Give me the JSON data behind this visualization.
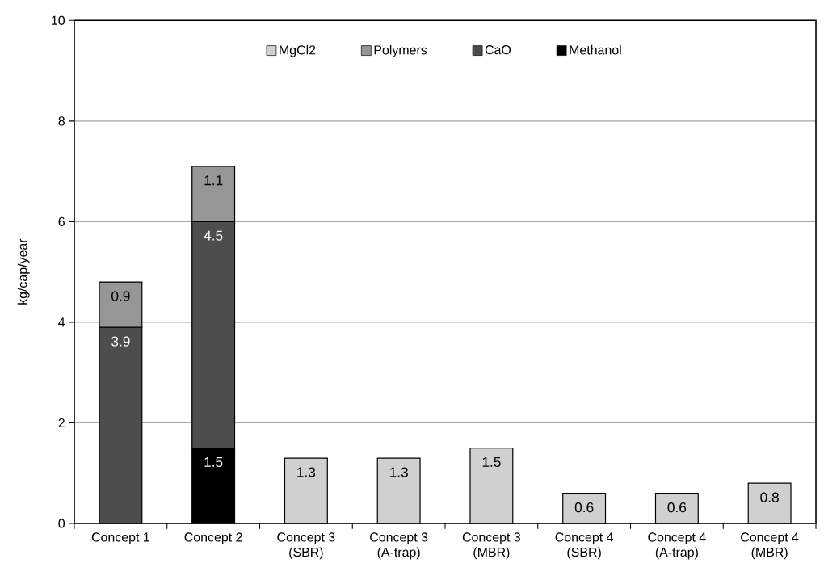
{
  "chart_data": {
    "type": "bar",
    "stacked": true,
    "ylabel": "kg/cap/year",
    "categories": [
      "Concept 1",
      "Concept 2",
      "Concept 3 (SBR)",
      "Concept 3 (A-trap)",
      "Concept 3 (MBR)",
      "Concept 4 (SBR)",
      "Concept 4 (A-trap)",
      "Concept 4 (MBR)"
    ],
    "series": [
      {
        "name": "Methanol",
        "color": "#000000",
        "values": [
          null,
          1.5,
          null,
          null,
          null,
          null,
          null,
          null
        ]
      },
      {
        "name": "CaO",
        "color": "#4d4d4d",
        "values": [
          3.9,
          4.5,
          null,
          null,
          null,
          null,
          null,
          null
        ]
      },
      {
        "name": "Polymers",
        "color": "#969696",
        "values": [
          0.9,
          1.1,
          null,
          null,
          null,
          null,
          null,
          null
        ]
      },
      {
        "name": "MgCl2",
        "color": "#d0d0d0",
        "values": [
          null,
          null,
          1.3,
          1.3,
          1.5,
          0.6,
          0.6,
          0.8
        ]
      }
    ],
    "ylim": [
      0,
      10
    ],
    "yticks": [
      0,
      2,
      4,
      6,
      8,
      10
    ],
    "grid": "y",
    "legend": "top",
    "data_labels": true
  }
}
